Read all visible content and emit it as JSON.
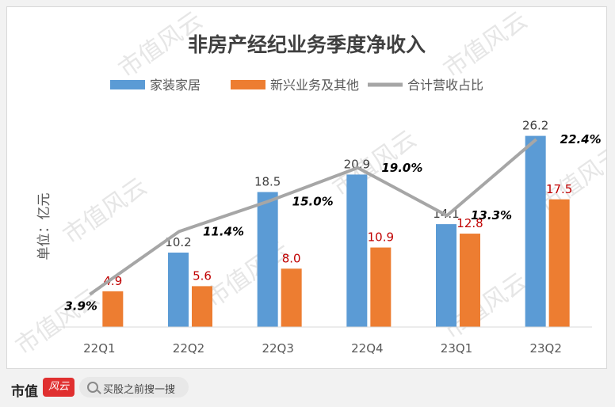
{
  "chart_data": {
    "type": "bar",
    "title": "非房产经纪业务季度净收入",
    "ylabel": "单位：亿元",
    "categories": [
      "22Q1",
      "22Q2",
      "22Q3",
      "22Q4",
      "23Q1",
      "23Q2"
    ],
    "series": [
      {
        "name": "家装家居",
        "type": "bar",
        "color": "#5b9bd5",
        "values": [
          null,
          10.2,
          18.5,
          20.9,
          14.1,
          26.2
        ],
        "labels": [
          "",
          "10.2",
          "18.5",
          "20.9",
          "14.1",
          "26.2"
        ]
      },
      {
        "name": "新兴业务及其他",
        "type": "bar",
        "color": "#ed7d31",
        "values": [
          4.9,
          5.6,
          8.0,
          10.9,
          12.8,
          17.5
        ],
        "labels": [
          "4.9",
          "5.6",
          "8.0",
          "10.9",
          "12.8",
          "17.5"
        ]
      },
      {
        "name": "合计营收占比",
        "type": "line",
        "color": "#a6a6a6",
        "values": [
          3.9,
          11.4,
          15.0,
          19.0,
          13.3,
          22.4
        ],
        "labels": [
          "3.9%",
          "11.4%",
          "15.0%",
          "19.0%",
          "13.3%",
          "22.4%"
        ]
      }
    ],
    "ylim": [
      0,
      28
    ],
    "line_ylim": [
      0,
      24
    ],
    "legend_position": "top",
    "grid": false
  },
  "watermark_text": "市值风云",
  "footer": {
    "logo": "市值",
    "search_text": "买股之前搜一搜"
  },
  "colors": {
    "label_red": "#c00000",
    "title": "#404040"
  }
}
